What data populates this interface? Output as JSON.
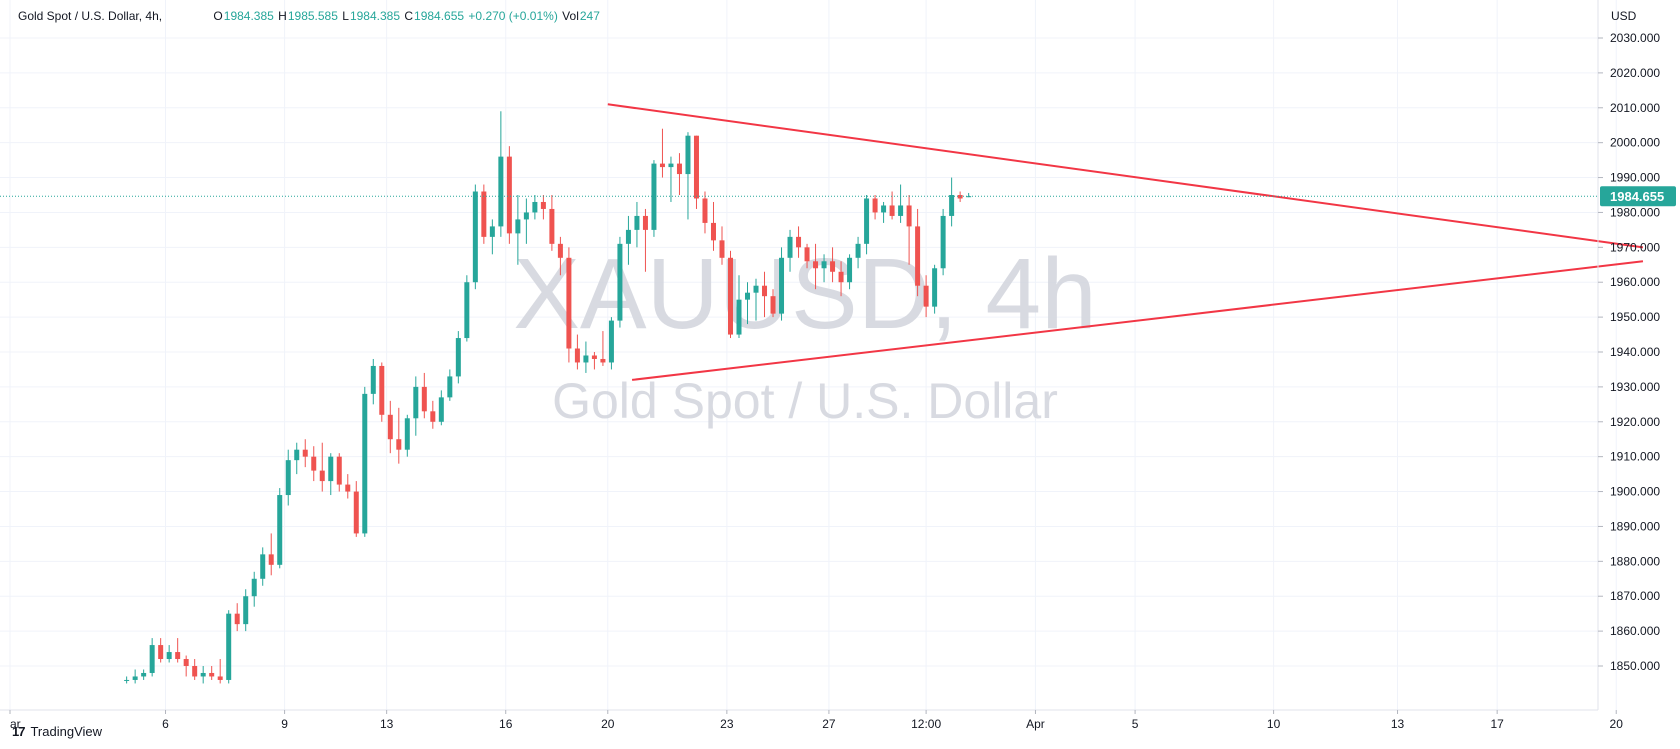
{
  "legend": {
    "symbol": "Gold Spot / U.S. Dollar, 4h,",
    "o_label": "O",
    "o": "1984.385",
    "h_label": "H",
    "h": "1985.585",
    "l_label": "L",
    "l": "1984.385",
    "c_label": "C",
    "c": "1984.655",
    "change": "+0.270 (+0.01%)",
    "vol_label": "Vol",
    "vol": "247"
  },
  "watermark": {
    "ticker": "XAUUSD, 4h",
    "name": "Gold Spot / U.S. Dollar"
  },
  "branding": {
    "logo_text": "TradingView",
    "logo_mark": "17"
  },
  "colors": {
    "up": "#26a69a",
    "down": "#ef5350",
    "trendline": "#f23645",
    "price_label_bg": "#26a69a",
    "grid": "#f0f3fa"
  },
  "chart_data": {
    "type": "candlestick",
    "currency": "USD",
    "ylim": [
      1845,
      2036
    ],
    "y_ticks": [
      1850,
      1860,
      1870,
      1880,
      1890,
      1900,
      1910,
      1920,
      1930,
      1940,
      1950,
      1960,
      1970,
      1980,
      1990,
      2000,
      2010,
      2020,
      2030
    ],
    "y_tick_labels": [
      "1850.000",
      "1860.000",
      "1870.000",
      "1880.000",
      "1890.000",
      "1900.000",
      "1910.000",
      "1920.000",
      "1930.000",
      "1940.000",
      "1950.000",
      "1960.000",
      "1970.000",
      "1980.000",
      "1990.000",
      "2000.000",
      "2010.000",
      "2020.000",
      "2030.000"
    ],
    "x_ticks": [
      {
        "label": "ar",
        "x": 0.0
      },
      {
        "label": "6",
        "x": 32.0
      },
      {
        "label": "9",
        "x": 56.5
      },
      {
        "label": "13",
        "x": 77.5
      },
      {
        "label": "16",
        "x": 102.0
      },
      {
        "label": "20",
        "x": 123.0
      },
      {
        "label": "23",
        "x": 147.5
      },
      {
        "label": "27",
        "x": 168.5
      },
      {
        "label": "12:00",
        "x": 188.5
      },
      {
        "label": "Apr",
        "x": 211.0
      },
      {
        "label": "5",
        "x": 231.5
      },
      {
        "label": "10",
        "x": 260.0
      },
      {
        "label": "13",
        "x": 285.5
      },
      {
        "label": "17",
        "x": 306.0
      },
      {
        "label": "20",
        "x": 330.5
      }
    ],
    "current_price": 1984.655,
    "current_price_label": "1984.655",
    "candles_start_x": 24.0,
    "candle_step": 1.75,
    "candles": [
      [
        1846,
        1847,
        1845,
        1846
      ],
      [
        1846,
        1849,
        1845,
        1847
      ],
      [
        1847,
        1849,
        1846,
        1848
      ],
      [
        1848,
        1858,
        1847,
        1856
      ],
      [
        1856,
        1858,
        1851,
        1852
      ],
      [
        1852,
        1856,
        1851,
        1854
      ],
      [
        1854,
        1858,
        1851,
        1852
      ],
      [
        1852,
        1853,
        1847,
        1850
      ],
      [
        1850,
        1852,
        1846,
        1847
      ],
      [
        1847,
        1850,
        1845,
        1848
      ],
      [
        1848,
        1850,
        1846,
        1847
      ],
      [
        1847,
        1852,
        1845,
        1846
      ],
      [
        1846,
        1866,
        1845,
        1865
      ],
      [
        1865,
        1868,
        1860,
        1862
      ],
      [
        1862,
        1872,
        1860,
        1870
      ],
      [
        1870,
        1877,
        1867,
        1875
      ],
      [
        1875,
        1884,
        1873,
        1882
      ],
      [
        1882,
        1888,
        1876,
        1879
      ],
      [
        1879,
        1901,
        1878,
        1899
      ],
      [
        1899,
        1912,
        1896,
        1909
      ],
      [
        1909,
        1914,
        1905,
        1912
      ],
      [
        1912,
        1915,
        1907,
        1910
      ],
      [
        1910,
        1913,
        1903,
        1906
      ],
      [
        1906,
        1914,
        1900,
        1903
      ],
      [
        1903,
        1911,
        1899,
        1910
      ],
      [
        1910,
        1911,
        1900,
        1902
      ],
      [
        1902,
        1905,
        1898,
        1900
      ],
      [
        1900,
        1903,
        1887,
        1888
      ],
      [
        1888,
        1930,
        1887,
        1928
      ],
      [
        1928,
        1938,
        1925,
        1936
      ],
      [
        1936,
        1937,
        1920,
        1922
      ],
      [
        1922,
        1926,
        1911,
        1915
      ],
      [
        1915,
        1924,
        1908,
        1912
      ],
      [
        1912,
        1922,
        1910,
        1921
      ],
      [
        1921,
        1933,
        1916,
        1930
      ],
      [
        1930,
        1934,
        1921,
        1923
      ],
      [
        1923,
        1926,
        1918,
        1920
      ],
      [
        1920,
        1929,
        1919,
        1927
      ],
      [
        1927,
        1935,
        1926,
        1933
      ],
      [
        1933,
        1946,
        1931,
        1944
      ],
      [
        1944,
        1962,
        1943,
        1960
      ],
      [
        1960,
        1988,
        1958,
        1986
      ],
      [
        1986,
        1988,
        1971,
        1973
      ],
      [
        1973,
        1978,
        1968,
        1976
      ],
      [
        1976,
        2009,
        1973,
        1996
      ],
      [
        1996,
        1999,
        1971,
        1974
      ],
      [
        1974,
        1985,
        1965,
        1978
      ],
      [
        1978,
        1984,
        1971,
        1980
      ],
      [
        1980,
        1985,
        1978,
        1983
      ],
      [
        1983,
        1985,
        1978,
        1981
      ],
      [
        1981,
        1985,
        1969,
        1971
      ],
      [
        1971,
        1973,
        1962,
        1967
      ],
      [
        1967,
        1970,
        1937,
        1941
      ],
      [
        1941,
        1945,
        1935,
        1937
      ],
      [
        1937,
        1943,
        1934,
        1939
      ],
      [
        1939,
        1940,
        1935,
        1938
      ],
      [
        1938,
        1946,
        1936,
        1937
      ],
      [
        1937,
        1950,
        1935,
        1949
      ],
      [
        1949,
        1973,
        1947,
        1971
      ],
      [
        1971,
        1979,
        1965,
        1975
      ],
      [
        1975,
        1983,
        1970,
        1979
      ],
      [
        1979,
        1981,
        1963,
        1975
      ],
      [
        1975,
        1995,
        1973,
        1994
      ],
      [
        1994,
        2004,
        1990,
        1993
      ],
      [
        1993,
        1996,
        1983,
        1994
      ],
      [
        1994,
        1997,
        1985,
        1991
      ],
      [
        1991,
        2003,
        1978,
        2002
      ],
      [
        2002,
        2002,
        1981,
        1984
      ],
      [
        1984,
        1986,
        1974,
        1977
      ],
      [
        1977,
        1983,
        1969,
        1972
      ],
      [
        1972,
        1976,
        1965,
        1967
      ],
      [
        1967,
        1969,
        1944,
        1945
      ],
      [
        1945,
        1962,
        1944,
        1955
      ],
      [
        1955,
        1960,
        1948,
        1957
      ],
      [
        1957,
        1961,
        1949,
        1959
      ],
      [
        1959,
        1963,
        1950,
        1956
      ],
      [
        1956,
        1958,
        1950,
        1951
      ],
      [
        1951,
        1970,
        1949,
        1967
      ],
      [
        1967,
        1975,
        1963,
        1973
      ],
      [
        1973,
        1976,
        1967,
        1970
      ],
      [
        1970,
        1971,
        1964,
        1966
      ],
      [
        1966,
        1971,
        1958,
        1964
      ],
      [
        1964,
        1968,
        1960,
        1966
      ],
      [
        1966,
        1970,
        1960,
        1963
      ],
      [
        1963,
        1966,
        1956,
        1960
      ],
      [
        1960,
        1968,
        1958,
        1967
      ],
      [
        1967,
        1973,
        1964,
        1971
      ],
      [
        1971,
        1985,
        1968,
        1984
      ],
      [
        1984,
        1985,
        1978,
        1980
      ],
      [
        1980,
        1983,
        1977,
        1982
      ],
      [
        1982,
        1986,
        1978,
        1979
      ],
      [
        1979,
        1988,
        1977,
        1982
      ],
      [
        1982,
        1985,
        1965,
        1976
      ],
      [
        1976,
        1981,
        1956,
        1959
      ],
      [
        1959,
        1962,
        1950,
        1953
      ],
      [
        1953,
        1965,
        1951,
        1964
      ],
      [
        1964,
        1981,
        1962,
        1979
      ],
      [
        1979,
        1990,
        1976,
        1985
      ],
      [
        1985,
        1986,
        1983,
        1984
      ],
      [
        1984.385,
        1985.585,
        1984.385,
        1984.655
      ]
    ],
    "trendlines": [
      {
        "name": "upper",
        "x1": 123.0,
        "y1": 2011,
        "x2": 336.0,
        "y2": 1970
      },
      {
        "name": "lower",
        "x1": 128.0,
        "y1": 1932,
        "x2": 336.0,
        "y2": 1966
      }
    ]
  }
}
